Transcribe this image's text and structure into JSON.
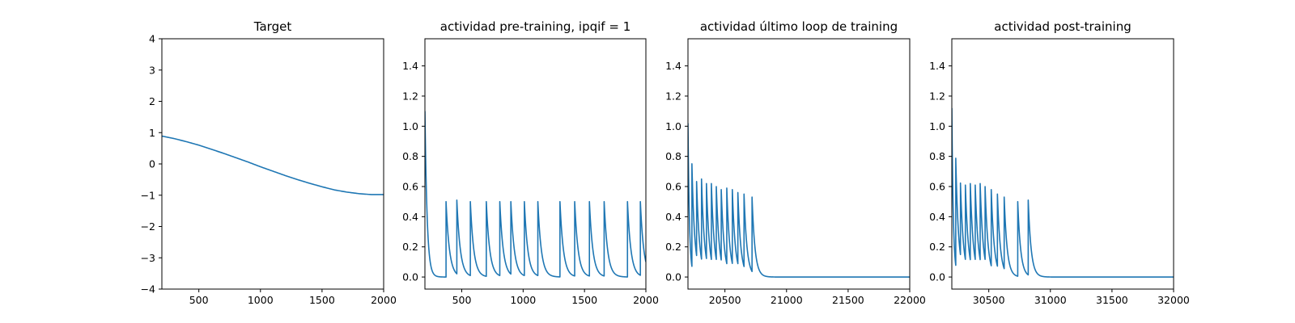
{
  "figure": {
    "background": "#ffffff",
    "line_color": "#1f77b4"
  },
  "chart_data": [
    {
      "type": "line",
      "title": "Target",
      "xlim": [
        200,
        2000
      ],
      "ylim": [
        -4,
        4
      ],
      "xticks": [
        500,
        1000,
        1500,
        2000
      ],
      "yticks": [
        -4,
        -3,
        -2,
        -1,
        0,
        1,
        2,
        3,
        4
      ],
      "series": [
        {
          "x": [
            200,
            300,
            400,
            500,
            600,
            700,
            800,
            900,
            1000,
            1100,
            1200,
            1300,
            1400,
            1500,
            1600,
            1700,
            1800,
            1900,
            2000
          ],
          "y": [
            0.89,
            0.81,
            0.71,
            0.6,
            0.47,
            0.34,
            0.2,
            0.06,
            -0.09,
            -0.23,
            -0.37,
            -0.5,
            -0.62,
            -0.73,
            -0.83,
            -0.9,
            -0.95,
            -0.98,
            -0.98
          ]
        }
      ]
    },
    {
      "type": "line",
      "title": "actividad pre-training, ipqif = 1",
      "xlim": [
        200,
        2000
      ],
      "ylim": [
        -0.08,
        1.58
      ],
      "xticks": [
        500,
        1000,
        1500,
        2000
      ],
      "yticks": [
        0.0,
        0.2,
        0.4,
        0.6,
        0.8,
        1.0,
        1.2,
        1.4
      ],
      "ytick_labels": [
        "0.0",
        "0.2",
        "0.4",
        "0.6",
        "0.8",
        "1.0",
        "1.2",
        "1.4"
      ],
      "baseline": 0.0,
      "start_spike": {
        "x": 200,
        "peak": 1.1,
        "tau": 18
      },
      "spikes": [
        {
          "x": 372,
          "peak": 0.5
        },
        {
          "x": 460,
          "peak": 0.51
        },
        {
          "x": 570,
          "peak": 0.5
        },
        {
          "x": 700,
          "peak": 0.5
        },
        {
          "x": 810,
          "peak": 0.5
        },
        {
          "x": 900,
          "peak": 0.5
        },
        {
          "x": 1010,
          "peak": 0.5
        },
        {
          "x": 1120,
          "peak": 0.5
        },
        {
          "x": 1300,
          "peak": 0.5
        },
        {
          "x": 1420,
          "peak": 0.5
        },
        {
          "x": 1540,
          "peak": 0.5
        },
        {
          "x": 1660,
          "peak": 0.5
        },
        {
          "x": 1850,
          "peak": 0.5
        },
        {
          "x": 1955,
          "peak": 0.5
        }
      ],
      "tau": 28
    },
    {
      "type": "line",
      "title": "actividad último loop de training",
      "xlim": [
        20200,
        22000
      ],
      "ylim": [
        -0.08,
        1.58
      ],
      "xticks": [
        20500,
        21000,
        21500,
        22000
      ],
      "yticks": [
        0.0,
        0.2,
        0.4,
        0.6,
        0.8,
        1.0,
        1.2,
        1.4
      ],
      "ytick_labels": [
        "0.0",
        "0.2",
        "0.4",
        "0.6",
        "0.8",
        "1.0",
        "1.2",
        "1.4"
      ],
      "baseline": 0.0,
      "start_spike": {
        "x": 20200,
        "peak": 1.02,
        "tau": 12
      },
      "spikes": [
        {
          "x": 20232,
          "peak": 0.68
        },
        {
          "x": 20270,
          "peak": 0.63
        },
        {
          "x": 20310,
          "peak": 0.65
        },
        {
          "x": 20350,
          "peak": 0.62
        },
        {
          "x": 20390,
          "peak": 0.62
        },
        {
          "x": 20430,
          "peak": 0.6
        },
        {
          "x": 20470,
          "peak": 0.58
        },
        {
          "x": 20515,
          "peak": 0.59
        },
        {
          "x": 20560,
          "peak": 0.58
        },
        {
          "x": 20605,
          "peak": 0.56
        },
        {
          "x": 20655,
          "peak": 0.55
        },
        {
          "x": 20720,
          "peak": 0.53
        }
      ],
      "tau": 24
    },
    {
      "type": "line",
      "title": "actividad post-training",
      "xlim": [
        30200,
        32000
      ],
      "ylim": [
        -0.08,
        1.58
      ],
      "xticks": [
        30500,
        31000,
        31500,
        32000
      ],
      "yticks": [
        0.0,
        0.2,
        0.4,
        0.6,
        0.8,
        1.0,
        1.2,
        1.4
      ],
      "ytick_labels": [
        "0.0",
        "0.2",
        "0.4",
        "0.6",
        "0.8",
        "1.0",
        "1.2",
        "1.4"
      ],
      "baseline": 0.0,
      "start_spike": {
        "x": 30200,
        "peak": 1.12,
        "tau": 12
      },
      "spikes": [
        {
          "x": 30232,
          "peak": 0.71
        },
        {
          "x": 30270,
          "peak": 0.62
        },
        {
          "x": 30310,
          "peak": 0.61
        },
        {
          "x": 30350,
          "peak": 0.62
        },
        {
          "x": 30390,
          "peak": 0.61
        },
        {
          "x": 30430,
          "peak": 0.62
        },
        {
          "x": 30470,
          "peak": 0.6
        },
        {
          "x": 30520,
          "peak": 0.58
        },
        {
          "x": 30570,
          "peak": 0.55
        },
        {
          "x": 30625,
          "peak": 0.53
        },
        {
          "x": 30735,
          "peak": 0.5
        },
        {
          "x": 30820,
          "peak": 0.51
        }
      ],
      "tau": 24
    }
  ]
}
